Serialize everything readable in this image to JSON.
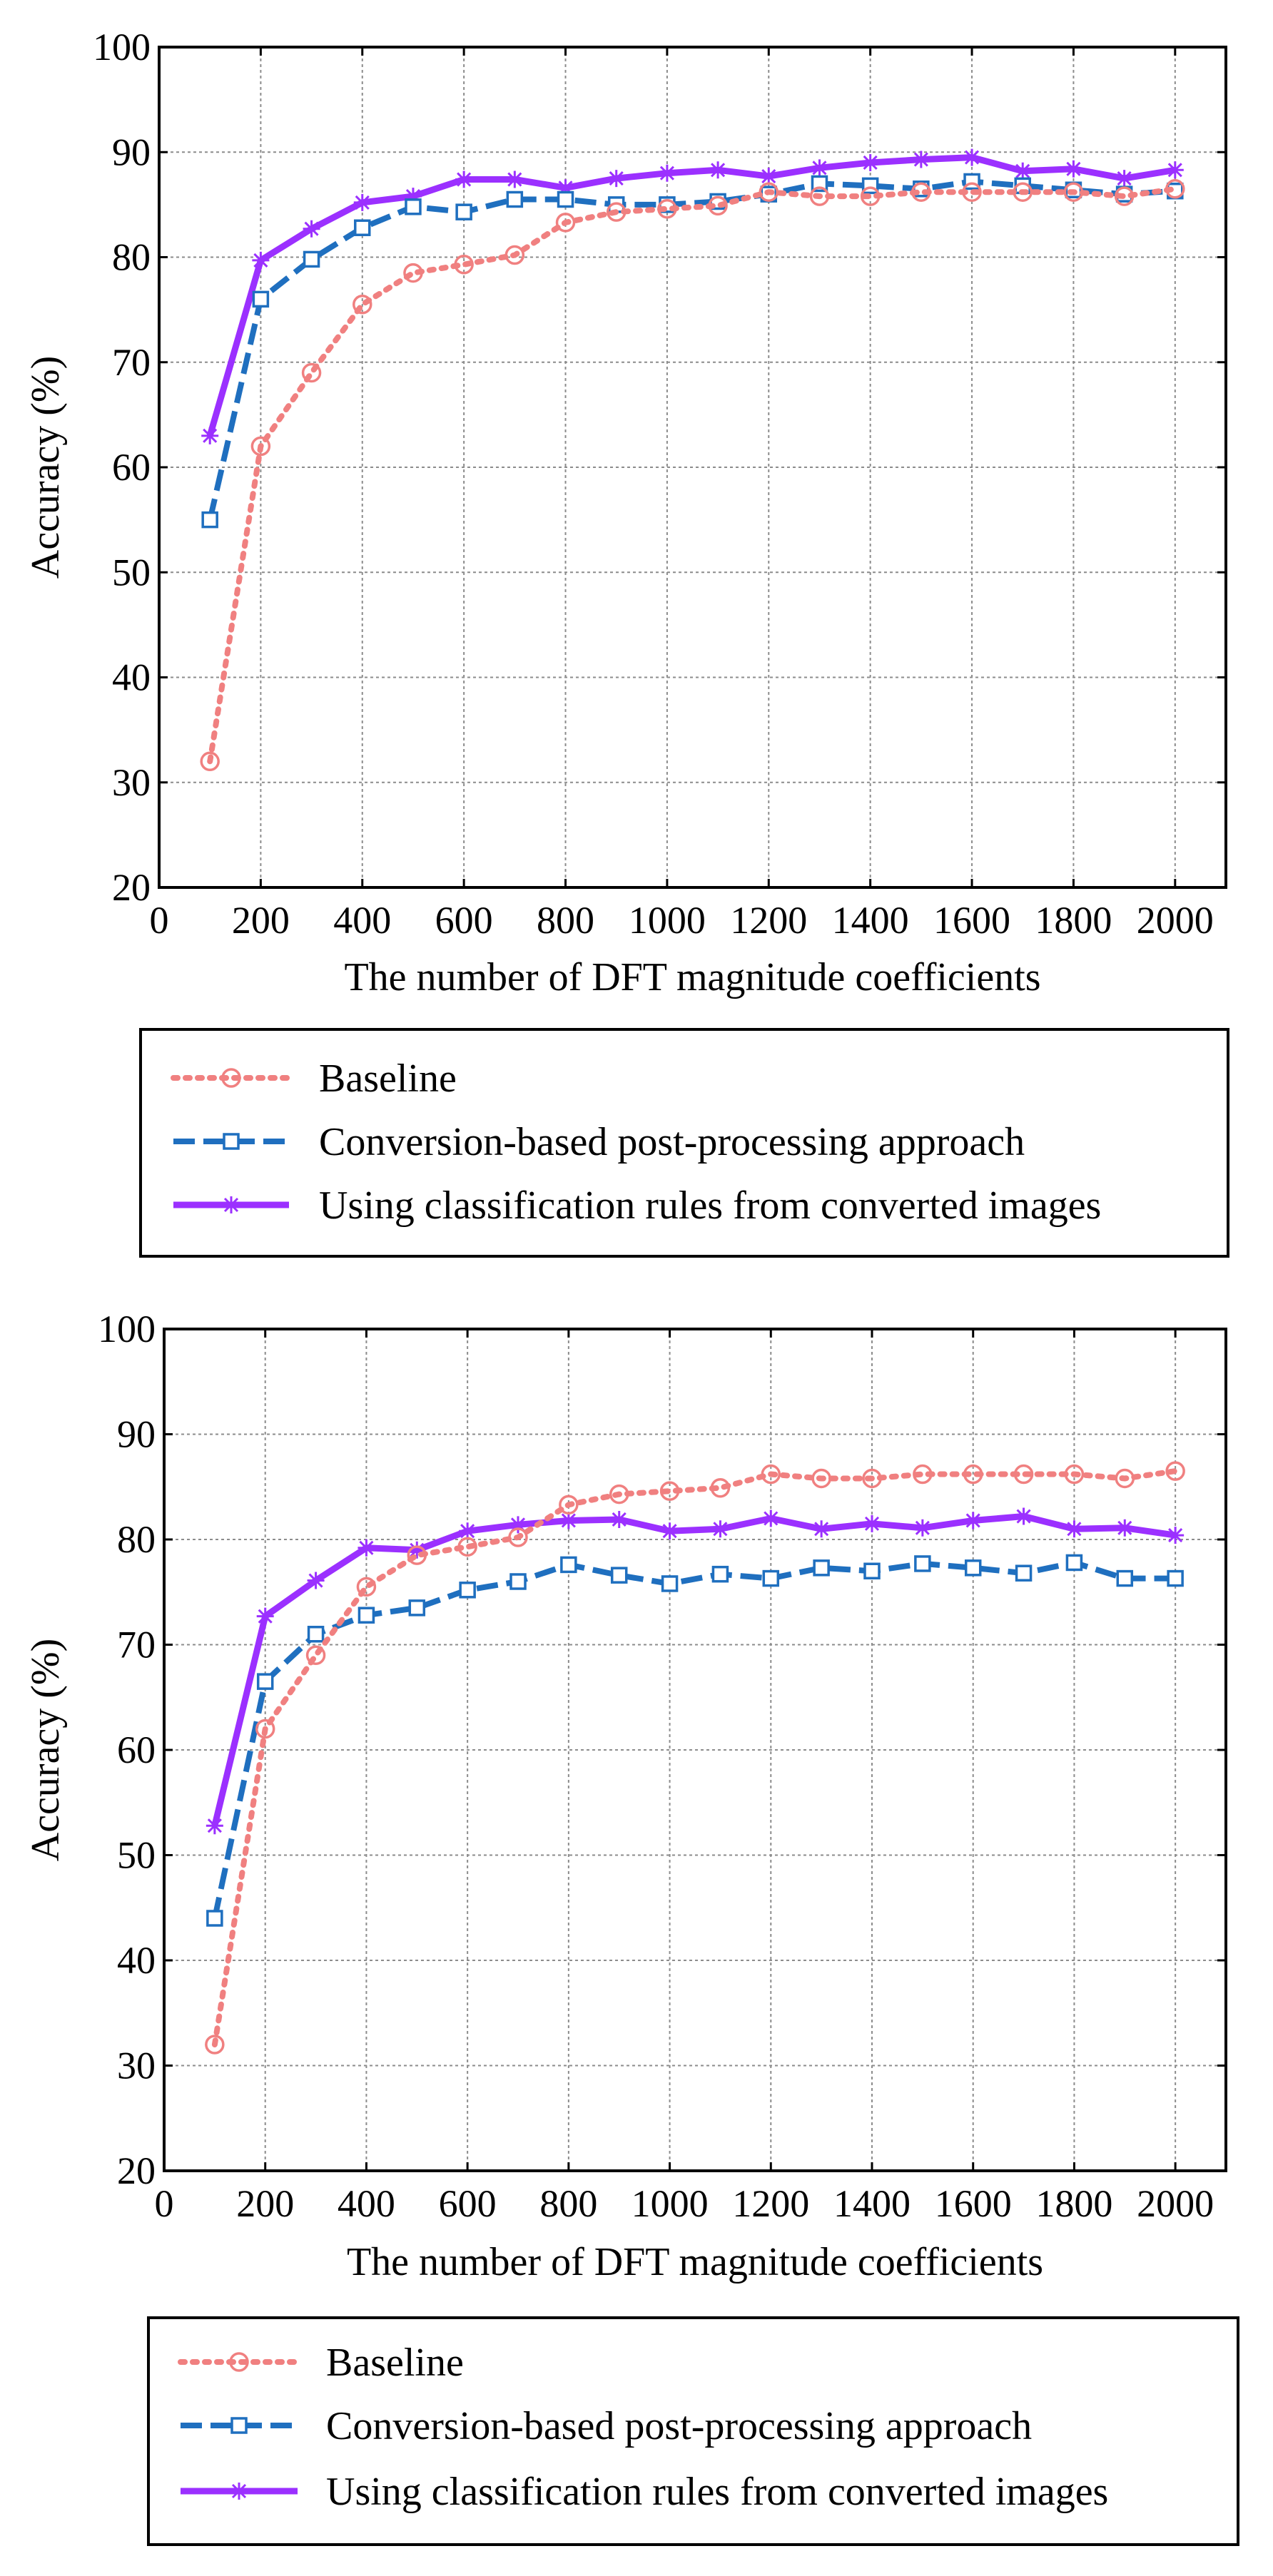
{
  "chart_data": [
    {
      "type": "line",
      "title": "",
      "xlabel": "The number of DFT magnitude coefficients",
      "ylabel": "Accuracy (%)",
      "xlim": [
        0,
        2100
      ],
      "ylim": [
        20,
        100
      ],
      "xticks": [
        0,
        200,
        400,
        600,
        800,
        1000,
        1200,
        1400,
        1600,
        1800,
        2000
      ],
      "yticks": [
        20,
        30,
        40,
        50,
        60,
        70,
        80,
        90,
        100
      ],
      "grid": true,
      "legend_position": "below",
      "x": [
        100,
        200,
        300,
        400,
        500,
        600,
        700,
        800,
        900,
        1000,
        1100,
        1200,
        1300,
        1400,
        1500,
        1600,
        1700,
        1800,
        1900,
        2000
      ],
      "series": [
        {
          "name": "Baseline",
          "color": "#f08080",
          "line": "dotted",
          "marker": "circle",
          "values": [
            32,
            62,
            69,
            75.5,
            78.5,
            79.3,
            80.2,
            83.3,
            84.3,
            84.6,
            84.9,
            86.2,
            85.8,
            85.8,
            86.2,
            86.2,
            86.2,
            86.2,
            85.8,
            86.5
          ]
        },
        {
          "name": "Conversion-based post-processing approach",
          "color": "#1f6fbf",
          "line": "dashed",
          "marker": "square",
          "values": [
            55,
            76,
            79.8,
            82.8,
            84.8,
            84.3,
            85.5,
            85.5,
            85,
            85,
            85.3,
            86,
            87,
            86.8,
            86.5,
            87.2,
            86.8,
            86.4,
            86,
            86.3
          ]
        },
        {
          "name": "Using classification rules from converted images",
          "color": "#9b30ff",
          "line": "solid",
          "marker": "star",
          "values": [
            63,
            79.7,
            82.7,
            85.2,
            85.8,
            87.4,
            87.4,
            86.6,
            87.5,
            88,
            88.3,
            87.7,
            88.5,
            89,
            89.3,
            89.5,
            88.2,
            88.4,
            87.5,
            88.3
          ]
        }
      ]
    },
    {
      "type": "line",
      "title": "",
      "xlabel": "The number of DFT magnitude coefficients",
      "ylabel": "Accuracy (%)",
      "xlim": [
        0,
        2100
      ],
      "ylim": [
        20,
        100
      ],
      "xticks": [
        0,
        200,
        400,
        600,
        800,
        1000,
        1200,
        1400,
        1600,
        1800,
        2000
      ],
      "yticks": [
        20,
        30,
        40,
        50,
        60,
        70,
        80,
        90,
        100
      ],
      "grid": true,
      "legend_position": "below",
      "x": [
        100,
        200,
        300,
        400,
        500,
        600,
        700,
        800,
        900,
        1000,
        1100,
        1200,
        1300,
        1400,
        1500,
        1600,
        1700,
        1800,
        1900,
        2000
      ],
      "series": [
        {
          "name": "Baseline",
          "color": "#f08080",
          "line": "dotted",
          "marker": "circle",
          "values": [
            32,
            62,
            69,
            75.5,
            78.5,
            79.3,
            80.2,
            83.3,
            84.3,
            84.6,
            84.9,
            86.2,
            85.8,
            85.8,
            86.2,
            86.2,
            86.2,
            86.2,
            85.8,
            86.5
          ]
        },
        {
          "name": "Conversion-based post-processing approach",
          "color": "#1f6fbf",
          "line": "dashed",
          "marker": "square",
          "values": [
            44,
            66.5,
            71,
            72.8,
            73.5,
            75.2,
            76,
            77.6,
            76.6,
            75.8,
            76.7,
            76.3,
            77.3,
            77,
            77.7,
            77.3,
            76.8,
            77.8,
            76.3,
            76.3
          ]
        },
        {
          "name": "Using classification rules from converted images",
          "color": "#9b30ff",
          "line": "solid",
          "marker": "star",
          "values": [
            52.8,
            72.7,
            76.1,
            79.2,
            79,
            80.8,
            81.4,
            81.8,
            81.9,
            80.8,
            81,
            82,
            81,
            81.5,
            81.1,
            81.8,
            82.2,
            81,
            81.1,
            80.4
          ]
        }
      ]
    }
  ]
}
